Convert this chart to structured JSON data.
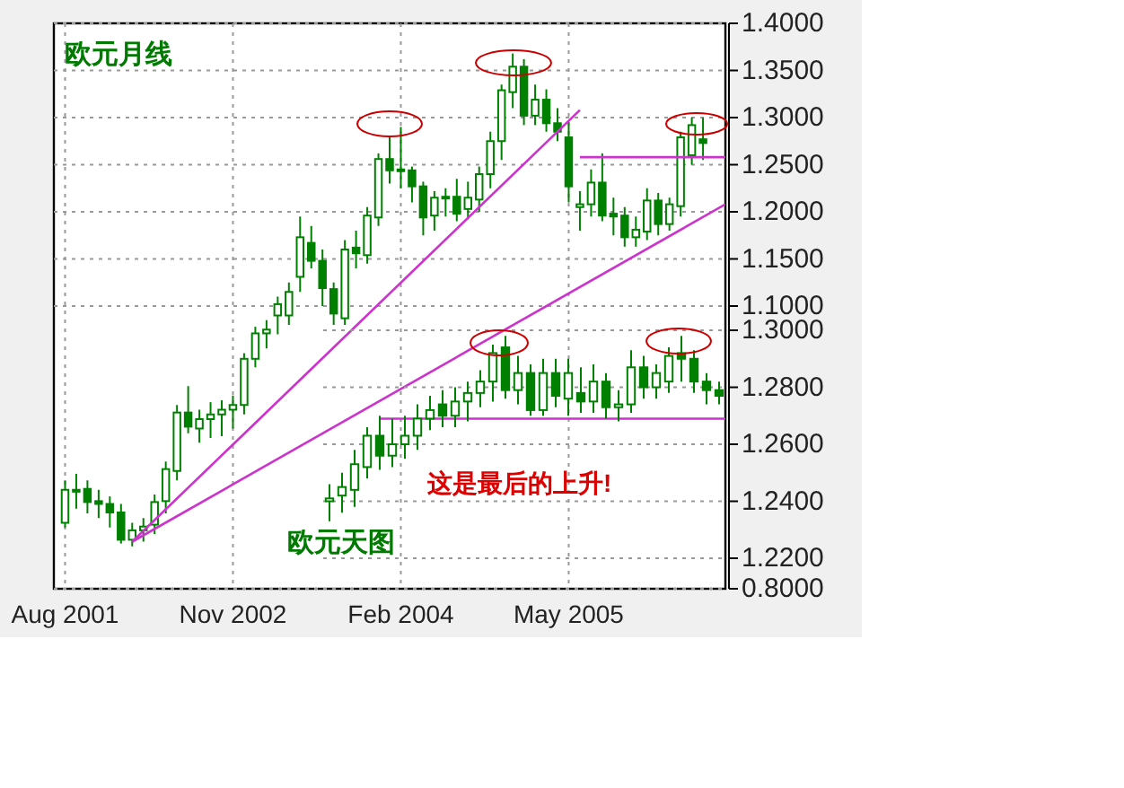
{
  "chart_data": [
    {
      "type": "candlestick",
      "title": "欧元月线",
      "x": [
        "2001-08",
        "2001-09",
        "2001-10",
        "2001-11",
        "2001-12",
        "2002-01",
        "2002-02",
        "2002-03",
        "2002-04",
        "2002-05",
        "2002-06",
        "2002-07",
        "2002-08",
        "2002-09",
        "2002-10",
        "2002-11",
        "2002-12",
        "2003-01",
        "2003-02",
        "2003-03",
        "2003-04",
        "2003-05",
        "2003-06",
        "2003-07",
        "2003-08",
        "2003-09",
        "2003-10",
        "2003-11",
        "2003-12",
        "2004-01",
        "2004-02",
        "2004-03",
        "2004-04",
        "2004-05",
        "2004-06",
        "2004-07",
        "2004-08",
        "2004-09",
        "2004-10",
        "2004-11",
        "2004-12",
        "2005-01",
        "2005-02",
        "2005-03",
        "2005-04",
        "2005-05",
        "2005-06",
        "2005-07",
        "2005-08",
        "2005-09",
        "2005-10",
        "2005-11",
        "2005-12",
        "2006-01",
        "2006-02",
        "2006-03",
        "2006-04",
        "2006-05"
      ],
      "series": [
        {
          "color": "#008000",
          "ohlc": [
            [
              0.87,
              0.915,
              0.865,
              0.905
            ],
            [
              0.905,
              0.922,
              0.885,
              0.903
            ],
            [
              0.906,
              0.915,
              0.88,
              0.892
            ],
            [
              0.893,
              0.905,
              0.875,
              0.89
            ],
            [
              0.89,
              0.898,
              0.865,
              0.881
            ],
            [
              0.881,
              0.89,
              0.848,
              0.852
            ],
            [
              0.852,
              0.87,
              0.845,
              0.862
            ],
            [
              0.862,
              0.875,
              0.85,
              0.866
            ],
            [
              0.868,
              0.9,
              0.858,
              0.892
            ],
            [
              0.893,
              0.935,
              0.88,
              0.927
            ],
            [
              0.925,
              0.995,
              0.915,
              0.987
            ],
            [
              0.987,
              1.015,
              0.965,
              0.972
            ],
            [
              0.97,
              0.99,
              0.955,
              0.98
            ],
            [
              0.98,
              0.998,
              0.96,
              0.985
            ],
            [
              0.985,
              1.0,
              0.962,
              0.99
            ],
            [
              0.99,
              1.005,
              0.97,
              0.995
            ],
            [
              0.995,
              1.05,
              0.985,
              1.044
            ],
            [
              1.044,
              1.078,
              1.035,
              1.071
            ],
            [
              1.071,
              1.085,
              1.055,
              1.075
            ],
            [
              1.09,
              1.11,
              1.07,
              1.102
            ],
            [
              1.09,
              1.125,
              1.08,
              1.115
            ],
            [
              1.131,
              1.195,
              1.115,
              1.173
            ],
            [
              1.167,
              1.185,
              1.14,
              1.148
            ],
            [
              1.148,
              1.16,
              1.1,
              1.119
            ],
            [
              1.118,
              1.125,
              1.08,
              1.092
            ],
            [
              1.087,
              1.17,
              1.08,
              1.16
            ],
            [
              1.162,
              1.18,
              1.14,
              1.156
            ],
            [
              1.154,
              1.205,
              1.145,
              1.196
            ],
            [
              1.194,
              1.262,
              1.185,
              1.256
            ],
            [
              1.256,
              1.28,
              1.23,
              1.244
            ],
            [
              1.244,
              1.29,
              1.225,
              1.245
            ],
            [
              1.244,
              1.248,
              1.21,
              1.227
            ],
            [
              1.227,
              1.232,
              1.175,
              1.194
            ],
            [
              1.196,
              1.222,
              1.18,
              1.215
            ],
            [
              1.215,
              1.225,
              1.195,
              1.216
            ],
            [
              1.216,
              1.235,
              1.19,
              1.198
            ],
            [
              1.203,
              1.232,
              1.192,
              1.215
            ],
            [
              1.213,
              1.248,
              1.2,
              1.24
            ],
            [
              1.24,
              1.285,
              1.225,
              1.275
            ],
            [
              1.275,
              1.335,
              1.255,
              1.329
            ],
            [
              1.327,
              1.368,
              1.31,
              1.354
            ],
            [
              1.354,
              1.362,
              1.292,
              1.302
            ],
            [
              1.302,
              1.335,
              1.292,
              1.319
            ],
            [
              1.319,
              1.33,
              1.285,
              1.294
            ],
            [
              1.294,
              1.31,
              1.275,
              1.285
            ],
            [
              1.279,
              1.295,
              1.21,
              1.227
            ],
            [
              1.205,
              1.222,
              1.18,
              1.208
            ],
            [
              1.208,
              1.245,
              1.195,
              1.231
            ],
            [
              1.231,
              1.262,
              1.19,
              1.196
            ],
            [
              1.198,
              1.215,
              1.175,
              1.195
            ],
            [
              1.196,
              1.205,
              1.163,
              1.173
            ],
            [
              1.173,
              1.195,
              1.163,
              1.181
            ],
            [
              1.179,
              1.225,
              1.17,
              1.212
            ],
            [
              1.212,
              1.22,
              1.175,
              1.187
            ],
            [
              1.187,
              1.215,
              1.18,
              1.208
            ],
            [
              1.206,
              1.285,
              1.195,
              1.279
            ],
            [
              1.26,
              1.3,
              1.25,
              1.292
            ],
            [
              1.277,
              1.3,
              1.255,
              1.273
            ]
          ]
        },
        {
          "type": "line",
          "color": "#cc33cc",
          "x": [
            "2002-02",
            "2005-06"
          ],
          "values": [
            0.85,
            1.308
          ]
        },
        {
          "type": "line",
          "color": "#cc33cc",
          "x": [
            "2002-02",
            "2006-07"
          ],
          "values": [
            0.85,
            1.208
          ]
        },
        {
          "type": "line",
          "color": "#cc33cc",
          "x": [
            "2005-06",
            "2006-07"
          ],
          "values": [
            1.258,
            1.258
          ]
        }
      ],
      "xlim": [
        "2001-07",
        "2006-07"
      ],
      "xticks": [
        {
          "value": "2001-08",
          "label": "Aug 2001"
        },
        {
          "value": "2002-11",
          "label": "Nov 2002"
        },
        {
          "value": "2004-02",
          "label": "Feb 2004"
        },
        {
          "value": "2005-05",
          "label": "May 2005"
        }
      ],
      "ylim": [
        0.8,
        1.4
      ],
      "yticks": [
        {
          "value": 1.4,
          "label": "1.4000"
        },
        {
          "value": 1.35,
          "label": "1.3500"
        },
        {
          "value": 1.3,
          "label": "1.3000"
        },
        {
          "value": 1.25,
          "label": "1.2500"
        },
        {
          "value": 1.2,
          "label": "1.2000"
        },
        {
          "value": 1.15,
          "label": "1.1500"
        },
        {
          "value": 1.1,
          "label": "1.1000"
        },
        {
          "value": 0.8,
          "label": "0.8000"
        }
      ],
      "grid": true
    },
    {
      "type": "candlestick",
      "categories": [
        null,
        null,
        null,
        null,
        null,
        null,
        null,
        null,
        null,
        null,
        null,
        null,
        null,
        null,
        null,
        null,
        null,
        null,
        null,
        null,
        null,
        null,
        null,
        null,
        null,
        null,
        null,
        null,
        null,
        null,
        null,
        null
      ],
      "series": [
        {
          "color": "#008000",
          "ohlc": [
            [
              1.24,
              1.246,
              1.233,
              1.241
            ],
            [
              1.242,
              1.25,
              1.236,
              1.245
            ],
            [
              1.244,
              1.258,
              1.238,
              1.253
            ],
            [
              1.252,
              1.266,
              1.248,
              1.263
            ],
            [
              1.263,
              1.27,
              1.251,
              1.256
            ],
            [
              1.256,
              1.269,
              1.252,
              1.26
            ],
            [
              1.26,
              1.27,
              1.255,
              1.263
            ],
            [
              1.263,
              1.274,
              1.258,
              1.269
            ],
            [
              1.269,
              1.277,
              1.265,
              1.272
            ],
            [
              1.274,
              1.279,
              1.266,
              1.27
            ],
            [
              1.27,
              1.28,
              1.266,
              1.275
            ],
            [
              1.275,
              1.282,
              1.268,
              1.278
            ],
            [
              1.278,
              1.286,
              1.273,
              1.282
            ],
            [
              1.282,
              1.295,
              1.275,
              1.292
            ],
            [
              1.294,
              1.298,
              1.276,
              1.279
            ],
            [
              1.279,
              1.291,
              1.274,
              1.285
            ],
            [
              1.285,
              1.288,
              1.27,
              1.272
            ],
            [
              1.272,
              1.29,
              1.27,
              1.285
            ],
            [
              1.285,
              1.29,
              1.273,
              1.277
            ],
            [
              1.276,
              1.29,
              1.27,
              1.285
            ],
            [
              1.278,
              1.287,
              1.271,
              1.275
            ],
            [
              1.275,
              1.288,
              1.271,
              1.282
            ],
            [
              1.282,
              1.285,
              1.269,
              1.273
            ],
            [
              1.273,
              1.279,
              1.268,
              1.274
            ],
            [
              1.274,
              1.293,
              1.271,
              1.287
            ],
            [
              1.287,
              1.291,
              1.276,
              1.28
            ],
            [
              1.28,
              1.288,
              1.276,
              1.285
            ],
            [
              1.282,
              1.294,
              1.278,
              1.291
            ],
            [
              1.292,
              1.298,
              1.282,
              1.29
            ],
            [
              1.29,
              1.293,
              1.278,
              1.282
            ],
            [
              1.282,
              1.285,
              1.274,
              1.279
            ],
            [
              1.279,
              1.282,
              1.274,
              1.277
            ]
          ]
        }
      ],
      "ylim": [
        1.2093,
        1.3
      ],
      "yticks": [
        {
          "value": 1.3,
          "label": "1.3000"
        },
        {
          "value": 1.28,
          "label": "1.2800"
        },
        {
          "value": 1.26,
          "label": "1.2600"
        },
        {
          "value": 1.24,
          "label": "1.2400"
        },
        {
          "value": 1.22,
          "label": "1.2200"
        }
      ],
      "ref_lines": [
        {
          "axis": "y",
          "value": 1.269,
          "color": "#cc33cc"
        }
      ],
      "annotations": [
        "欧元天图",
        "这是最后的上升!"
      ],
      "tick_labels": "y",
      "grid": "y"
    }
  ]
}
